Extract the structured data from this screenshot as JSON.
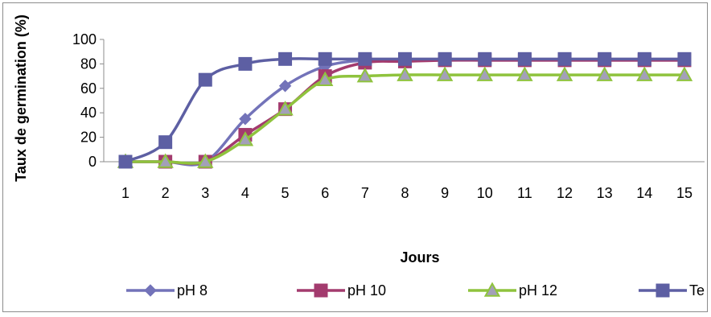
{
  "chart_data": {
    "type": "line",
    "title": "",
    "xlabel": "Jours",
    "ylabel": "Taux de germination (%)",
    "x": [
      "1",
      "2",
      "3",
      "4",
      "5",
      "6",
      "7",
      "8",
      "9",
      "10",
      "11",
      "12",
      "13",
      "14",
      "15"
    ],
    "ylim": [
      0,
      100
    ],
    "yticks": [
      "0",
      "20",
      "40",
      "60",
      "80",
      "100"
    ],
    "grid": false,
    "legend_position": "bottom",
    "series": [
      {
        "name": "pH 8",
        "color": "#7373b9",
        "marker": "diamond",
        "values": [
          0,
          0,
          0,
          35,
          62,
          78,
          83,
          83,
          83,
          83,
          83,
          83,
          83,
          83,
          83
        ]
      },
      {
        "name": "pH 10",
        "color": "#a33b6e",
        "marker": "square",
        "values": [
          0,
          0,
          0,
          22,
          43,
          70,
          81,
          82,
          83,
          83,
          83,
          83,
          83,
          83,
          83
        ]
      },
      {
        "name": "pH 12",
        "color": "#8fc33d",
        "marker": "triangle",
        "values": [
          0,
          0,
          0,
          18,
          43,
          67,
          70,
          71,
          71,
          71,
          71,
          71,
          71,
          71,
          71
        ]
      },
      {
        "name": "Te",
        "color": "#5d5fa3",
        "marker": "square",
        "values": [
          0,
          16,
          67,
          80,
          84,
          84,
          84,
          84,
          84,
          84,
          84,
          84,
          84,
          84,
          84
        ]
      }
    ]
  }
}
